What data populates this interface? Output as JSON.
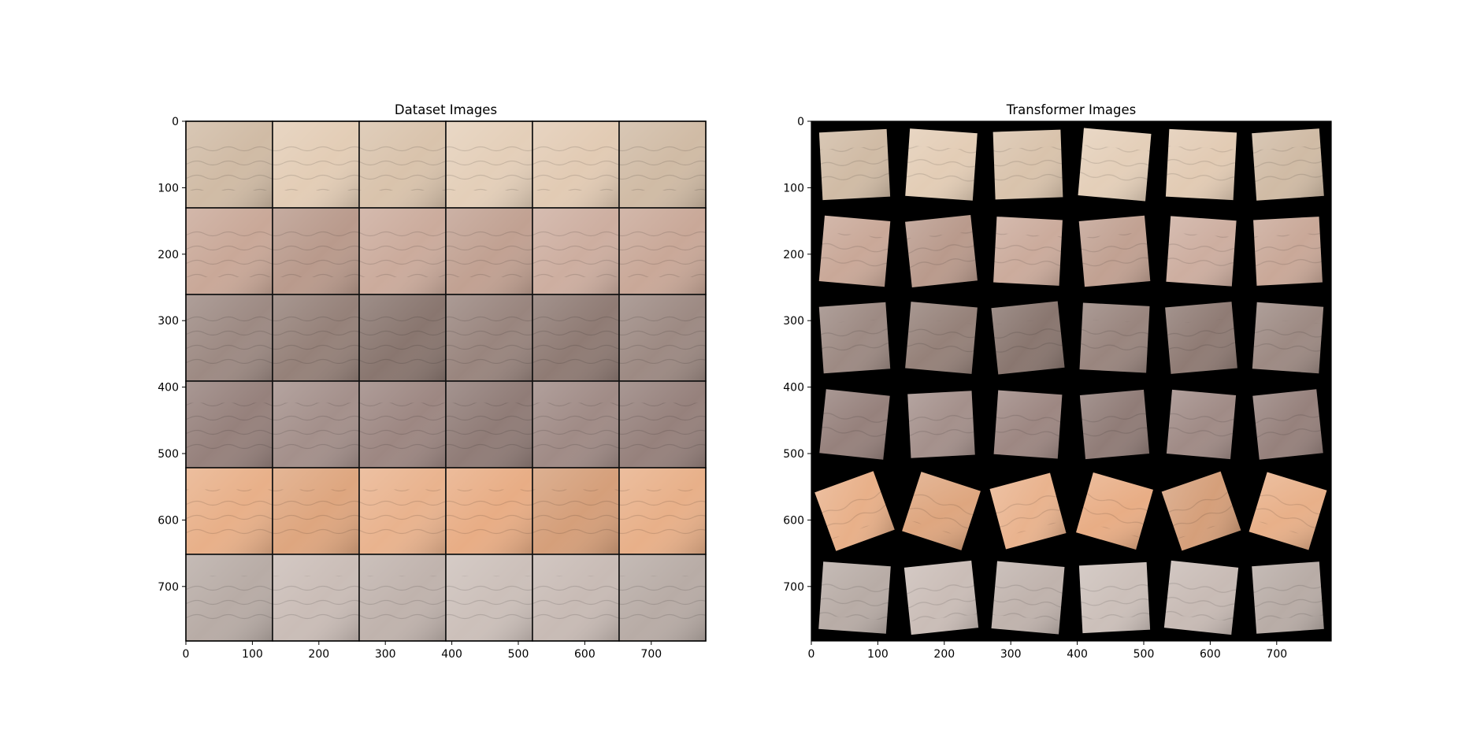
{
  "chart_data": [
    {
      "type": "image",
      "title": "Dataset Images",
      "grid": "6x6 tiles of knuckle skin photographs",
      "xlim": [
        0,
        782
      ],
      "ylim": [
        782,
        0
      ],
      "xticks": [
        0,
        100,
        200,
        300,
        400,
        500,
        600,
        700
      ],
      "yticks": [
        0,
        100,
        200,
        300,
        400,
        500,
        600,
        700
      ],
      "rows": 6,
      "cols": 6,
      "background_color": "#18233a",
      "tile_colors": [
        "#e2cbb4",
        "#c9a898",
        "#958179",
        "#9d8782",
        "#e8ad85",
        "#c8bbb5"
      ]
    },
    {
      "type": "image",
      "title": "Transformer Images",
      "grid": "6x6 tiles of rotated/transformed knuckle skin photographs",
      "xlim": [
        0,
        782
      ],
      "ylim": [
        782,
        0
      ],
      "xticks": [
        0,
        100,
        200,
        300,
        400,
        500,
        600,
        700
      ],
      "yticks": [
        0,
        100,
        200,
        300,
        400,
        500,
        600,
        700
      ],
      "rows": 6,
      "cols": 6,
      "background_color": "#000000",
      "tile_colors": [
        "#e2cbb4",
        "#c9a898",
        "#958179",
        "#9d8782",
        "#e8ad85",
        "#c8bbb5"
      ]
    }
  ]
}
